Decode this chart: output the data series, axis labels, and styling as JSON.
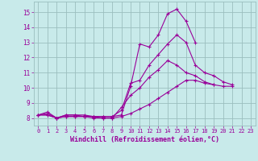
{
  "xlabel": "Windchill (Refroidissement éolien,°C)",
  "xlim": [
    -0.5,
    23.5
  ],
  "ylim": [
    7.5,
    15.7
  ],
  "yticks": [
    8,
    9,
    10,
    11,
    12,
    13,
    14,
    15
  ],
  "xticks": [
    0,
    1,
    2,
    3,
    4,
    5,
    6,
    7,
    8,
    9,
    10,
    11,
    12,
    13,
    14,
    15,
    16,
    17,
    18,
    19,
    20,
    21,
    22,
    23
  ],
  "bg_color": "#c8eaea",
  "line_color": "#990099",
  "grid_color": "#9bbebe",
  "series": [
    [
      8.2,
      8.4,
      8.0,
      8.2,
      8.2,
      8.2,
      8.1,
      8.1,
      8.1,
      8.2,
      10.1,
      12.9,
      12.7,
      13.5,
      14.9,
      15.2,
      14.4,
      13.0,
      null,
      null,
      null,
      null,
      null,
      null
    ],
    [
      8.2,
      8.3,
      8.0,
      8.2,
      8.2,
      8.1,
      8.1,
      8.1,
      8.1,
      8.5,
      10.3,
      10.5,
      11.5,
      12.2,
      12.9,
      13.5,
      13.0,
      11.5,
      11.0,
      10.8,
      10.4,
      10.2,
      null,
      null
    ],
    [
      8.2,
      8.2,
      8.0,
      8.1,
      8.1,
      8.1,
      8.1,
      8.0,
      8.0,
      8.7,
      9.5,
      10.0,
      10.7,
      11.2,
      11.8,
      11.5,
      11.0,
      10.8,
      10.4,
      10.2,
      null,
      null,
      null,
      null
    ],
    [
      8.2,
      8.2,
      8.0,
      8.1,
      8.1,
      8.1,
      8.0,
      8.0,
      8.0,
      8.1,
      8.3,
      8.6,
      8.9,
      9.3,
      9.7,
      10.1,
      10.5,
      10.5,
      10.3,
      10.2,
      10.1,
      10.1,
      null,
      null
    ]
  ]
}
